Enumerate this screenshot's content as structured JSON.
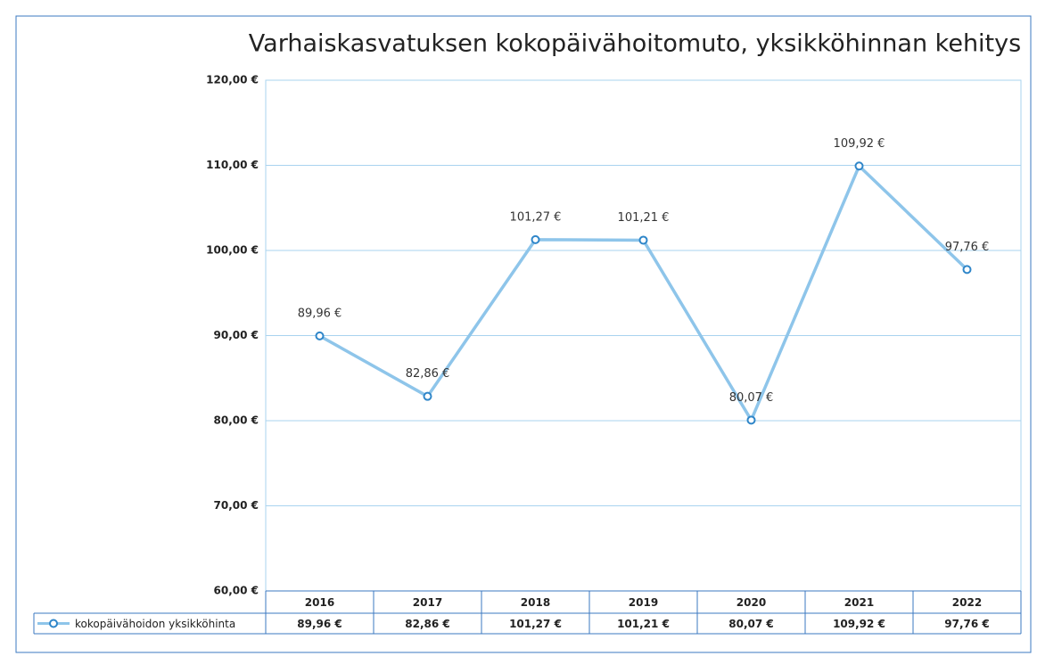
{
  "chart_data": {
    "type": "line",
    "title": "Varhaiskasvatuksen kokopäivähoitomuto, yksikköhinnan kehitys",
    "categories": [
      "2016",
      "2017",
      "2018",
      "2019",
      "2020",
      "2021",
      "2022"
    ],
    "series": [
      {
        "name": "kokopäivähoidon yksikköhinta",
        "color": "#8ec5ea",
        "marker_color": "#2f86c9",
        "values": [
          89.96,
          82.86,
          101.27,
          101.21,
          80.07,
          109.92,
          97.76
        ],
        "value_labels": [
          "89,96 €",
          "82,86 €",
          "101,27 €",
          "101,21 €",
          "80,07 €",
          "109,92 €",
          "97,76 €"
        ]
      }
    ],
    "ylim": [
      60,
      120
    ],
    "yticks": [
      {
        "value": 60,
        "label": "60,00 €"
      },
      {
        "value": 70,
        "label": "70,00 €"
      },
      {
        "value": 80,
        "label": "80,00 €"
      },
      {
        "value": 90,
        "label": "90,00 €"
      },
      {
        "value": 100,
        "label": "100,00 €"
      },
      {
        "value": 110,
        "label": "110,00 €"
      },
      {
        "value": 120,
        "label": "120,00 €"
      }
    ],
    "grid": true,
    "data_table": true
  }
}
